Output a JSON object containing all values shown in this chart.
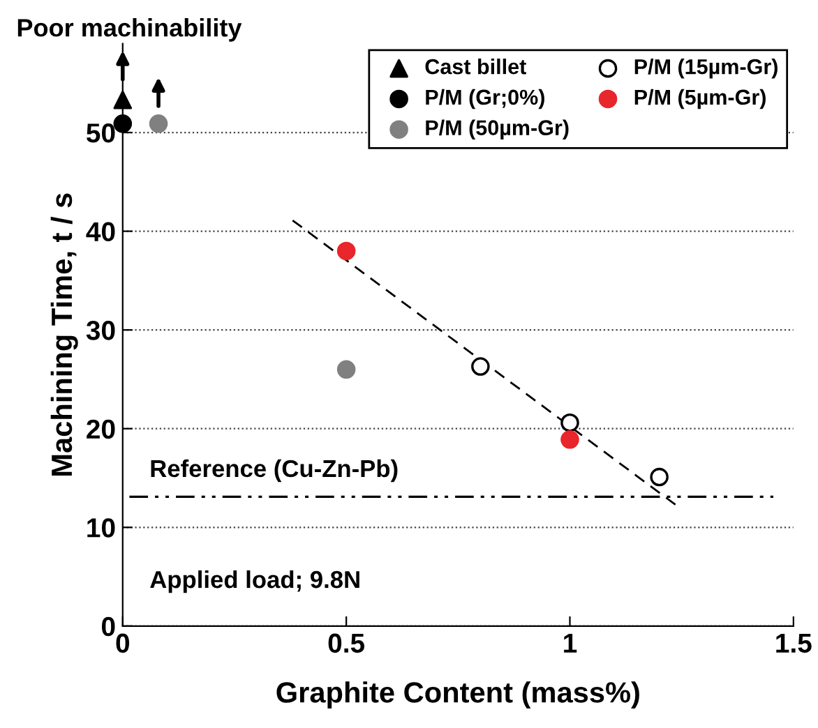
{
  "chart_data": {
    "type": "scatter",
    "xlabel": "Graphite Content (mass%)",
    "ylabel": "Machining Time, t / s",
    "xlim": [
      0,
      1.5
    ],
    "xticks": [
      0,
      0.5,
      1,
      1.5
    ],
    "ylim": [
      0,
      59
    ],
    "yticks": [
      0,
      10,
      20,
      30,
      40,
      50
    ],
    "grid": "y",
    "legend": "top right",
    "series": [
      {
        "name": "Cast billet",
        "color": "#000000",
        "marker": "triangle",
        "x": [
          0
        ],
        "values": [
          53.3
        ]
      },
      {
        "name": "P/M (Gr;0%)",
        "color": "#000000",
        "marker": "circle",
        "x": [
          0
        ],
        "values": [
          50.9
        ]
      },
      {
        "name": "P/M (50µm-Gr)",
        "color": "#808080",
        "marker": "circle",
        "x": [
          0.08,
          0.5
        ],
        "values": [
          50.9,
          26
        ]
      },
      {
        "name": "P/M (15µm-Gr)",
        "color": "#ffffff",
        "marker": "circle",
        "x": [
          0.8,
          1.0,
          1.2
        ],
        "values": [
          26.3,
          20.6,
          15.1
        ]
      },
      {
        "name": "P/M (5µm-Gr)",
        "color": "#e8262b",
        "marker": "circle",
        "x": [
          0.5,
          1.0
        ],
        "values": [
          38,
          18.9
        ]
      },
      {
        "type": "line",
        "color": "#000000",
        "line_style": "dashed",
        "marker": "none",
        "x": [
          0.38,
          1.236
        ],
        "values": [
          41.1,
          12.3
        ]
      }
    ],
    "ref_lines": [
      {
        "axis": "y",
        "value": 13.1,
        "label": "Reference (Cu-Zn-Pb)",
        "color": "#000000",
        "line_style": "dashdot"
      }
    ],
    "annotations": [
      "Poor machinability",
      "Applied load; 9.8N"
    ]
  }
}
